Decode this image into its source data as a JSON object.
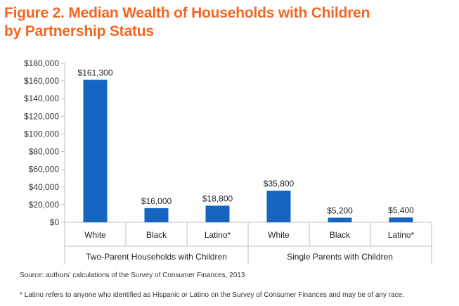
{
  "title_line1": "Figure 2. Median Wealth of Households with Children",
  "title_line2": "by Partnership Status",
  "chart_data": {
    "type": "bar",
    "title": "Figure 2. Median Wealth of Households with Children by Partnership Status",
    "xlabel": "",
    "ylabel": "",
    "ylim": [
      0,
      180000
    ],
    "yticks": [
      0,
      20000,
      40000,
      60000,
      80000,
      100000,
      120000,
      140000,
      160000,
      180000
    ],
    "ytick_labels": [
      "$0",
      "$20,000",
      "$40,000",
      "$60,000",
      "$80,000",
      "$100,000",
      "$120,000",
      "$140,000",
      "$160,000",
      "$180,000"
    ],
    "categories": [
      "White",
      "Black",
      "Latino*",
      "White",
      "Black",
      "Latino*"
    ],
    "groups": [
      {
        "label": "Two-Parent Households with Children",
        "span": [
          0,
          2
        ]
      },
      {
        "label": "Single Parents with Children",
        "span": [
          3,
          5
        ]
      }
    ],
    "values": [
      161300,
      16000,
      18800,
      35800,
      5200,
      5400
    ],
    "data_labels": [
      "$161,300",
      "$16,000",
      "$18,800",
      "$35,800",
      "$5,200",
      "$5,400"
    ],
    "bar_color": "#1565c0",
    "grid": false,
    "legend": "none"
  },
  "source": "Source: authors' calculations of the Survey of Consumer Finances, 2013",
  "footnote": "* Latino refers to anyone who identified as Hispanic or Latino on the Survey of Consumer Finances and may be of any race."
}
